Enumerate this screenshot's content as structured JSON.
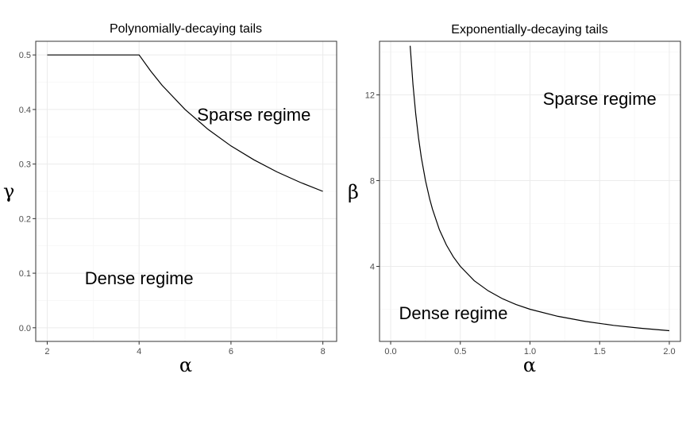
{
  "chart_data": [
    {
      "type": "line",
      "title": "Polynomially-decaying tails",
      "xlabel": "α",
      "ylabel": "γ",
      "xlim": [
        1.75,
        8.3
      ],
      "ylim": [
        -0.025,
        0.525
      ],
      "xticks": [
        "2",
        "4",
        "6",
        "8"
      ],
      "yticks": [
        "0.0",
        "0.1",
        "0.2",
        "0.3",
        "0.4",
        "0.5"
      ],
      "grid": true,
      "annotations": [
        {
          "text": "Sparse regime",
          "x": 6.5,
          "y": 0.39
        },
        {
          "text": "Dense regime",
          "x": 4.0,
          "y": 0.09
        }
      ],
      "series": [
        {
          "x": [
            2,
            2.5,
            3,
            3.5,
            4,
            4.25,
            4.5,
            5,
            5.5,
            6,
            6.5,
            7,
            7.5,
            8
          ],
          "y": [
            0.5,
            0.5,
            0.5,
            0.5,
            0.5,
            0.4706,
            0.4444,
            0.4,
            0.3636,
            0.3333,
            0.3077,
            0.2857,
            0.2667,
            0.25
          ]
        }
      ]
    },
    {
      "type": "line",
      "title": "Exponentially-decaying tails",
      "xlabel": "α",
      "ylabel": "β",
      "xlim": [
        -0.08,
        2.08
      ],
      "ylim": [
        0.5,
        14.5
      ],
      "xticks": [
        "0.0",
        "0.5",
        "1.0",
        "1.5",
        "2.0"
      ],
      "yticks": [
        "4",
        "8",
        "12"
      ],
      "grid": true,
      "annotations": [
        {
          "text": "Sparse regime",
          "x": 1.5,
          "y": 11.8
        },
        {
          "text": "Dense regime",
          "x": 0.45,
          "y": 1.8
        }
      ],
      "series": [
        {
          "x": [
            0.14,
            0.16,
            0.18,
            0.2,
            0.22,
            0.25,
            0.28,
            0.3,
            0.35,
            0.4,
            0.45,
            0.5,
            0.6,
            0.7,
            0.8,
            0.9,
            1.0,
            1.2,
            1.4,
            1.6,
            1.8,
            2.0
          ],
          "y": [
            14.29,
            12.5,
            11.11,
            10.0,
            9.09,
            8.0,
            7.14,
            6.67,
            5.71,
            5.0,
            4.44,
            4.0,
            3.33,
            2.86,
            2.5,
            2.22,
            2.0,
            1.67,
            1.43,
            1.25,
            1.11,
            1.0
          ]
        }
      ]
    }
  ]
}
